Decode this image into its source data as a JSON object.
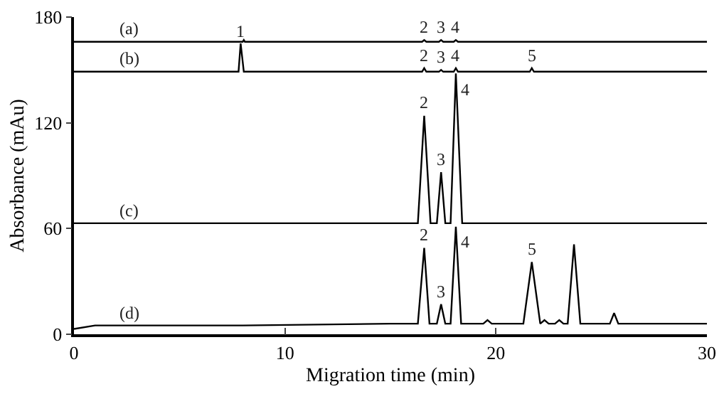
{
  "chart_data": {
    "type": "line",
    "xlabel": "Migration time (min)",
    "ylabel": "Absorbance (mAu)",
    "xlim": [
      0,
      30
    ],
    "ylim": [
      0,
      180
    ],
    "xticks": [
      0,
      10,
      20,
      30
    ],
    "yticks": [
      0,
      60,
      120,
      180
    ],
    "grid": false,
    "marker": "none",
    "line_style": "solid",
    "series": [
      {
        "color": "#000000",
        "x": [
          0,
          8,
          8.05,
          8.1,
          16.5,
          16.6,
          16.7,
          17.3,
          17.4,
          17.5,
          18,
          18.1,
          18.2,
          30
        ],
        "values": [
          166,
          166,
          167,
          166,
          166,
          167,
          166,
          166,
          167,
          166,
          166,
          167,
          166,
          166
        ]
      },
      {
        "color": "#000000",
        "x": [
          0,
          7.8,
          7.9,
          8.05,
          16.5,
          16.6,
          16.7,
          17.3,
          17.4,
          17.5,
          18,
          18.1,
          18.2,
          21.6,
          21.7,
          21.8,
          30
        ],
        "values": [
          149,
          149,
          165,
          149,
          149,
          151,
          149,
          149,
          150,
          149,
          149,
          151,
          149,
          149,
          151,
          149,
          149
        ]
      },
      {
        "color": "#000000",
        "x": [
          0,
          16.3,
          16.6,
          16.9,
          17.2,
          17.4,
          17.6,
          17.85,
          18.1,
          18.4,
          30
        ],
        "values": [
          63,
          63,
          124,
          63,
          63,
          92,
          63,
          63,
          148,
          63,
          63
        ]
      },
      {
        "color": "#000000",
        "x": [
          0,
          1,
          8,
          15,
          16.3,
          16.6,
          16.85,
          17.2,
          17.4,
          17.6,
          17.85,
          18.1,
          18.35,
          19.4,
          19.6,
          19.8,
          21.3,
          21.7,
          22.1,
          22.3,
          22.5,
          22.8,
          23,
          23.2,
          23.4,
          23.7,
          24,
          25.4,
          25.6,
          25.8,
          30
        ],
        "values": [
          3,
          5,
          5,
          6,
          6,
          49,
          6,
          6,
          17,
          6,
          6,
          61,
          6,
          6,
          8,
          6,
          6,
          41,
          6,
          8,
          6,
          6,
          8,
          6,
          6,
          51,
          6,
          6,
          12,
          6,
          6
        ]
      }
    ],
    "annotations": [
      {
        "text": "(a)",
        "x": 2.6,
        "y": 166
      },
      {
        "text": "(b)",
        "x": 2.6,
        "y": 149
      },
      {
        "text": "(c)",
        "x": 2.6,
        "y": 63
      },
      {
        "text": "(d)",
        "x": 2.6,
        "y": 5
      },
      {
        "text": "2",
        "x": 16.6,
        "y": 167
      },
      {
        "text": "3",
        "x": 17.4,
        "y": 167
      },
      {
        "text": "4",
        "x": 18.1,
        "y": 167
      },
      {
        "text": "1",
        "x": 7.9,
        "y": 165
      },
      {
        "text": "2",
        "x": 16.6,
        "y": 151
      },
      {
        "text": "3",
        "x": 17.4,
        "y": 150
      },
      {
        "text": "4",
        "x": 18.1,
        "y": 151
      },
      {
        "text": "5",
        "x": 21.7,
        "y": 151
      },
      {
        "text": "2",
        "x": 16.6,
        "y": 124
      },
      {
        "text": "3",
        "x": 17.4,
        "y": 92
      },
      {
        "text": "4",
        "x": 18.1,
        "y": 148
      },
      {
        "text": "2",
        "x": 16.6,
        "y": 49
      },
      {
        "text": "3",
        "x": 17.4,
        "y": 17
      },
      {
        "text": "4",
        "x": 18.1,
        "y": 61
      },
      {
        "text": "5",
        "x": 21.7,
        "y": 41
      }
    ]
  }
}
